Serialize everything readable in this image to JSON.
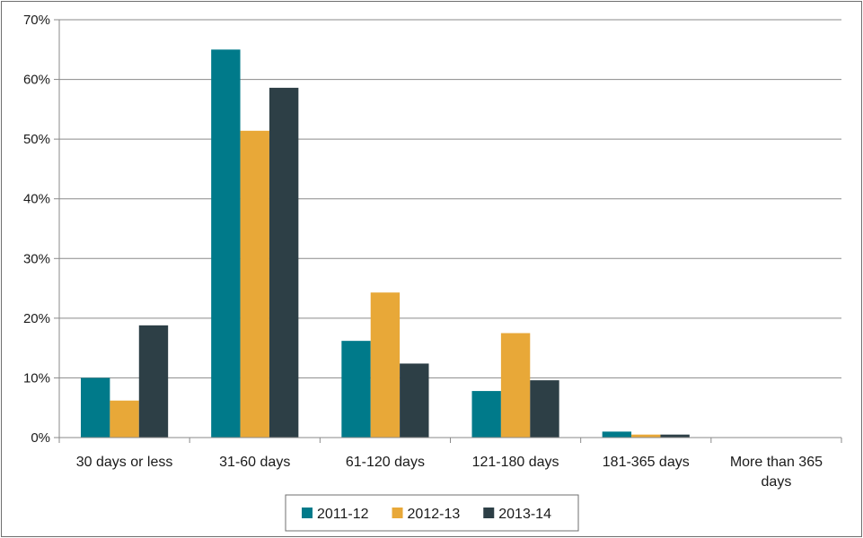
{
  "chart_data": {
    "type": "bar",
    "categories": [
      "30 days or less",
      "31-60 days",
      "61-120 days",
      "121-180 days",
      "181-365 days",
      "More than 365 days"
    ],
    "series": [
      {
        "name": "2011-12",
        "color": "#007a8a",
        "values": [
          10,
          65,
          16.2,
          7.8,
          1.0,
          0
        ]
      },
      {
        "name": "2012-13",
        "color": "#e8a838",
        "values": [
          6.2,
          51.4,
          24.3,
          17.5,
          0.5,
          0
        ]
      },
      {
        "name": "2013-14",
        "color": "#2d3f46",
        "values": [
          18.8,
          58.6,
          12.4,
          9.6,
          0.5,
          0
        ]
      }
    ],
    "y_ticks": [
      "0%",
      "10%",
      "20%",
      "30%",
      "40%",
      "50%",
      "60%",
      "70%"
    ],
    "ylim": [
      0,
      70
    ],
    "grid": true,
    "legend_position": "bottom",
    "title": "",
    "xlabel": "",
    "ylabel": ""
  }
}
